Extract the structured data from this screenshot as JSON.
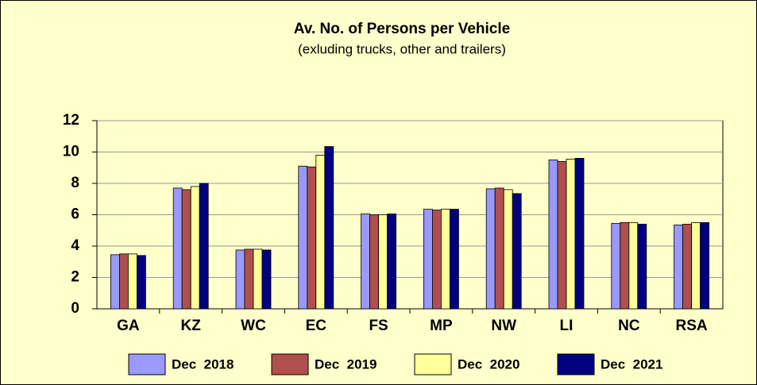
{
  "chart_data": {
    "type": "bar",
    "title": "Av. No. of Persons per Vehicle",
    "subtitle": "(exluding trucks, other and trailers)",
    "categories": [
      "GA",
      "KZ",
      "WC",
      "EC",
      "FS",
      "MP",
      "NW",
      "LI",
      "NC",
      "RSA"
    ],
    "series": [
      {
        "name": "Dec  2018",
        "color": "#9999ff",
        "values": [
          3.45,
          7.7,
          3.75,
          9.1,
          6.05,
          6.35,
          7.65,
          9.5,
          5.45,
          5.35
        ]
      },
      {
        "name": "Dec  2019",
        "color": "#b04f4f",
        "values": [
          3.5,
          7.6,
          3.8,
          9.05,
          6.0,
          6.3,
          7.7,
          9.4,
          5.5,
          5.4
        ]
      },
      {
        "name": "Dec  2020",
        "color": "#ffff99",
        "values": [
          3.5,
          7.8,
          3.8,
          9.8,
          6.0,
          6.35,
          7.6,
          9.55,
          5.5,
          5.5
        ]
      },
      {
        "name": "Dec  2021",
        "color": "#000080",
        "values": [
          3.4,
          8.0,
          3.75,
          10.35,
          6.05,
          6.35,
          7.35,
          9.6,
          5.4,
          5.5
        ]
      }
    ],
    "ylim": [
      0,
      12
    ],
    "yticks": [
      0,
      2,
      4,
      6,
      8,
      10,
      12
    ],
    "grid": true,
    "legend": "bottom"
  }
}
